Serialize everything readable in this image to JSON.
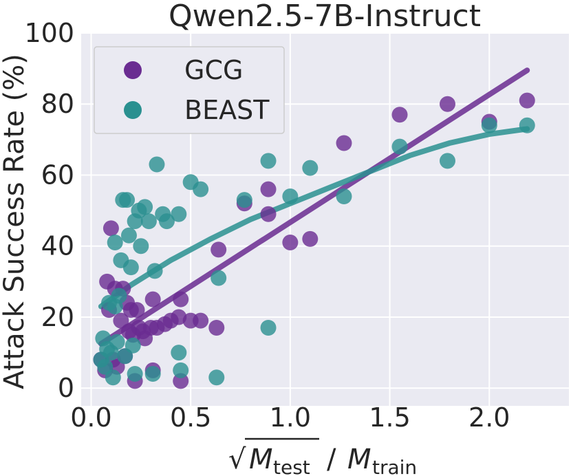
{
  "chart_data": {
    "type": "scatter",
    "title": "Qwen2.5-7B-Instruct",
    "xlabel_parts": {
      "sqrt": "√",
      "m_test": "M",
      "test_sub": "test",
      "slash": "/",
      "m_train": "M",
      "train_sub": "train"
    },
    "ylabel": "Attack Success Rate (%)",
    "xlim": [
      -0.05,
      2.4
    ],
    "ylim": [
      -5,
      100
    ],
    "xticks": [
      0.0,
      0.5,
      1.0,
      1.5,
      2.0
    ],
    "xtick_labels": [
      "0.0",
      "0.5",
      "1.0",
      "1.5",
      "2.0"
    ],
    "yticks": [
      0,
      20,
      40,
      60,
      80,
      100
    ],
    "ytick_labels": [
      "0",
      "20",
      "40",
      "60",
      "80",
      "100"
    ],
    "grid": true,
    "legend_position": "top-left",
    "series": [
      {
        "name": "GCG",
        "color": "#6a2c91",
        "points": [
          [
            0.05,
            8
          ],
          [
            0.07,
            5
          ],
          [
            0.08,
            30
          ],
          [
            0.09,
            22
          ],
          [
            0.1,
            45
          ],
          [
            0.11,
            8
          ],
          [
            0.12,
            28
          ],
          [
            0.13,
            6
          ],
          [
            0.15,
            19
          ],
          [
            0.16,
            28
          ],
          [
            0.17,
            9
          ],
          [
            0.18,
            24
          ],
          [
            0.19,
            16
          ],
          [
            0.2,
            22
          ],
          [
            0.21,
            15
          ],
          [
            0.22,
            2
          ],
          [
            0.23,
            22
          ],
          [
            0.24,
            17
          ],
          [
            0.26,
            16
          ],
          [
            0.27,
            14
          ],
          [
            0.3,
            17
          ],
          [
            0.31,
            25
          ],
          [
            0.31,
            5
          ],
          [
            0.33,
            17
          ],
          [
            0.37,
            18
          ],
          [
            0.4,
            19
          ],
          [
            0.44,
            20
          ],
          [
            0.45,
            25
          ],
          [
            0.45,
            2
          ],
          [
            0.5,
            19
          ],
          [
            0.55,
            19
          ],
          [
            0.63,
            17
          ],
          [
            0.64,
            39
          ],
          [
            0.77,
            52
          ],
          [
            0.89,
            56
          ],
          [
            0.89,
            49
          ],
          [
            1.0,
            41
          ],
          [
            1.1,
            42
          ],
          [
            1.27,
            69
          ],
          [
            1.55,
            77
          ],
          [
            1.79,
            80
          ],
          [
            2.0,
            75
          ],
          [
            2.19,
            81
          ]
        ],
        "fit": [
          [
            0.05,
            12.5
          ],
          [
            2.19,
            89.5
          ]
        ]
      },
      {
        "name": "BEAST",
        "color": "#2a9090",
        "points": [
          [
            0.05,
            8
          ],
          [
            0.06,
            14
          ],
          [
            0.07,
            6
          ],
          [
            0.08,
            11
          ],
          [
            0.09,
            24
          ],
          [
            0.1,
            10
          ],
          [
            0.11,
            3
          ],
          [
            0.12,
            41
          ],
          [
            0.12,
            23
          ],
          [
            0.13,
            13
          ],
          [
            0.14,
            26
          ],
          [
            0.15,
            36
          ],
          [
            0.16,
            53
          ],
          [
            0.17,
            9
          ],
          [
            0.18,
            53
          ],
          [
            0.19,
            43
          ],
          [
            0.2,
            34
          ],
          [
            0.21,
            12
          ],
          [
            0.22,
            47
          ],
          [
            0.22,
            4
          ],
          [
            0.24,
            50
          ],
          [
            0.25,
            40
          ],
          [
            0.27,
            51
          ],
          [
            0.29,
            47
          ],
          [
            0.31,
            4
          ],
          [
            0.32,
            33
          ],
          [
            0.33,
            63
          ],
          [
            0.36,
            49
          ],
          [
            0.38,
            47
          ],
          [
            0.44,
            49
          ],
          [
            0.44,
            10
          ],
          [
            0.45,
            5
          ],
          [
            0.5,
            58
          ],
          [
            0.55,
            56
          ],
          [
            0.63,
            3
          ],
          [
            0.64,
            31
          ],
          [
            0.77,
            53
          ],
          [
            0.89,
            64
          ],
          [
            0.89,
            17
          ],
          [
            1.0,
            54
          ],
          [
            1.1,
            62
          ],
          [
            1.27,
            54
          ],
          [
            1.55,
            68
          ],
          [
            1.79,
            64
          ],
          [
            2.0,
            74
          ],
          [
            2.19,
            74
          ]
        ],
        "fit": [
          [
            0.05,
            23
          ],
          [
            0.2,
            29
          ],
          [
            0.4,
            36
          ],
          [
            0.6,
            42
          ],
          [
            0.8,
            47.5
          ],
          [
            1.0,
            52
          ],
          [
            1.2,
            56.5
          ],
          [
            1.4,
            61
          ],
          [
            1.6,
            65.5
          ],
          [
            1.8,
            69
          ],
          [
            2.0,
            71.5
          ],
          [
            2.19,
            73
          ]
        ]
      }
    ]
  }
}
